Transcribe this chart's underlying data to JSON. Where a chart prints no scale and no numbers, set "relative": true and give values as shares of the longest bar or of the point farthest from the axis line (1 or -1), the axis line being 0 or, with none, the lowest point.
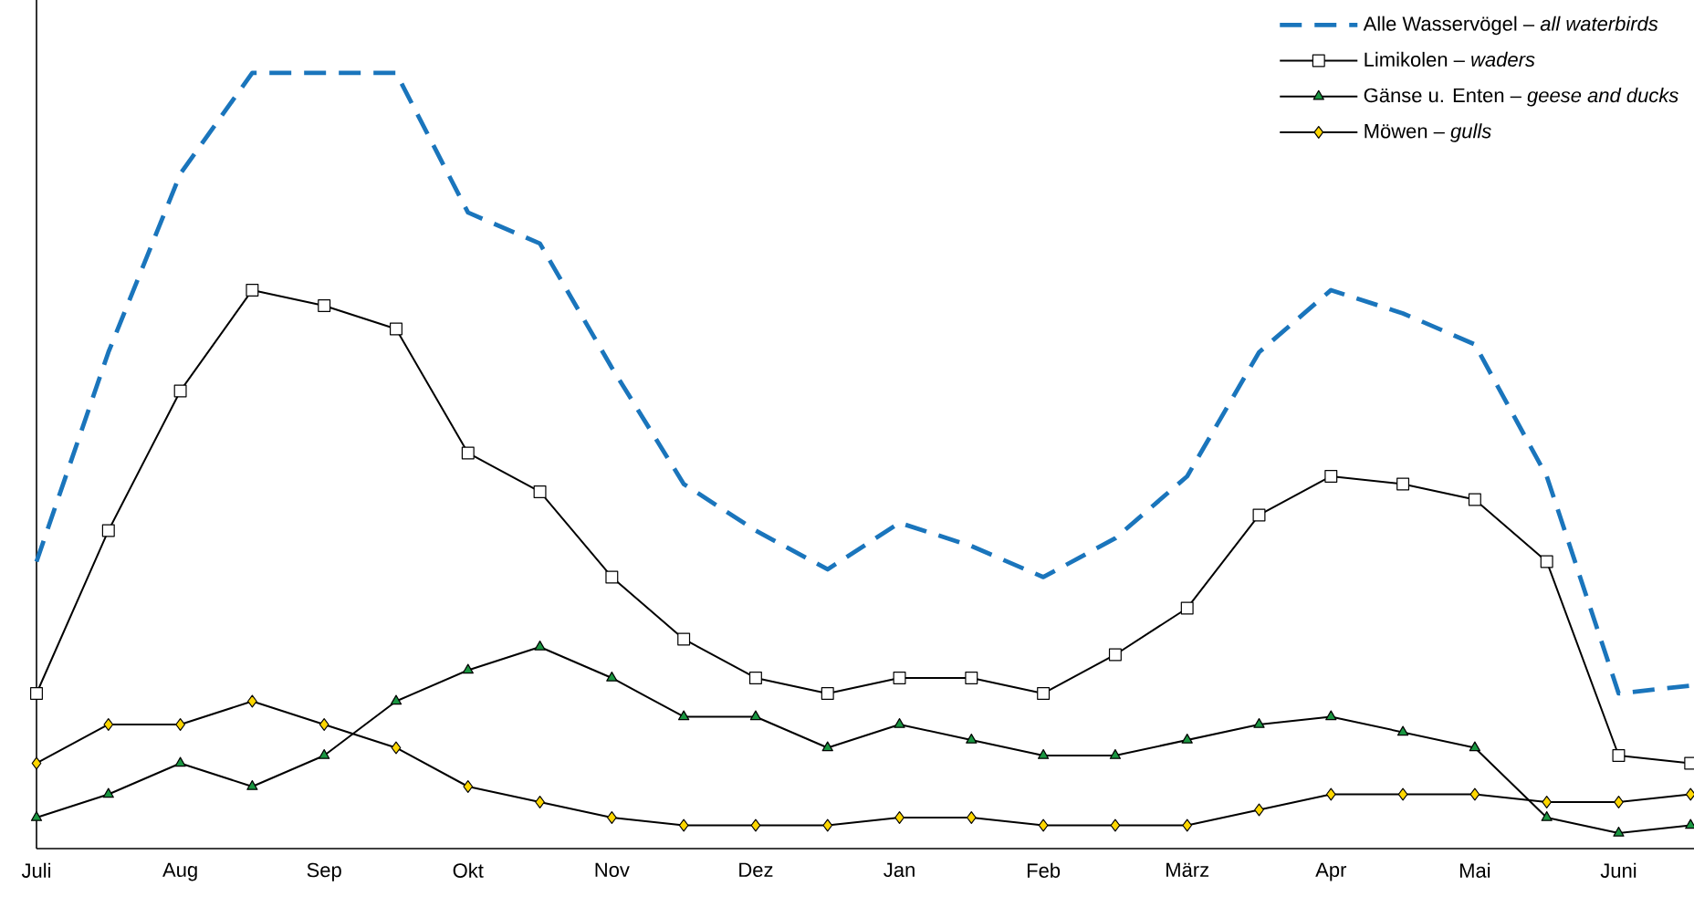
{
  "chart_data": {
    "type": "line",
    "relative": true,
    "legend": "top right",
    "categories": [
      "Juli",
      null,
      "Aug",
      null,
      "Sep",
      null,
      "Okt",
      null,
      "Nov",
      null,
      "Dez",
      null,
      "Jan",
      null,
      "Feb",
      null,
      "März",
      null,
      "Apr",
      null,
      "Mai",
      null,
      "Juni",
      null
    ],
    "series": [
      {
        "name": "Alle Wasservögel – *all waterbirds*",
        "color": "#1a75bc",
        "marker": "none",
        "line_style": "dashed",
        "values": [
          0.37,
          0.64,
          0.87,
          1,
          1,
          1,
          0.82,
          0.78,
          0.62,
          0.47,
          0.41,
          0.36,
          0.42,
          0.39,
          0.35,
          0.4,
          0.48,
          0.64,
          0.72,
          0.69,
          0.65,
          0.48,
          0.2,
          0.21
        ]
      },
      {
        "name": "Limikolen – *waders*",
        "color": "#ffffff",
        "marker": "square",
        "line_style": "solid",
        "values": [
          0.2,
          0.41,
          0.59,
          0.72,
          0.7,
          0.67,
          0.51,
          0.46,
          0.35,
          0.27,
          0.22,
          0.2,
          0.22,
          0.22,
          0.2,
          0.25,
          0.31,
          0.43,
          0.48,
          0.47,
          0.45,
          0.37,
          0.12,
          0.11
        ]
      },
      {
        "name": "Gänse u. Enten – *geese and ducks*",
        "color": "#1a9641",
        "marker": "triangle",
        "line_style": "solid",
        "values": [
          0.04,
          0.07,
          0.11,
          0.08,
          0.12,
          0.19,
          0.23,
          0.26,
          0.22,
          0.17,
          0.17,
          0.13,
          0.16,
          0.14,
          0.12,
          0.12,
          0.14,
          0.16,
          0.17,
          0.15,
          0.13,
          0.04,
          0.02,
          0.03
        ]
      },
      {
        "name": "Möwen – *gulls*",
        "color": "#ffd700",
        "marker": "diamond",
        "line_style": "solid",
        "values": [
          0.11,
          0.16,
          0.16,
          0.19,
          0.16,
          0.13,
          0.08,
          0.06,
          0.04,
          0.03,
          0.03,
          0.03,
          0.04,
          0.04,
          0.03,
          0.03,
          0.03,
          0.05,
          0.07,
          0.07,
          0.07,
          0.06,
          0.06,
          0.07
        ]
      }
    ]
  }
}
